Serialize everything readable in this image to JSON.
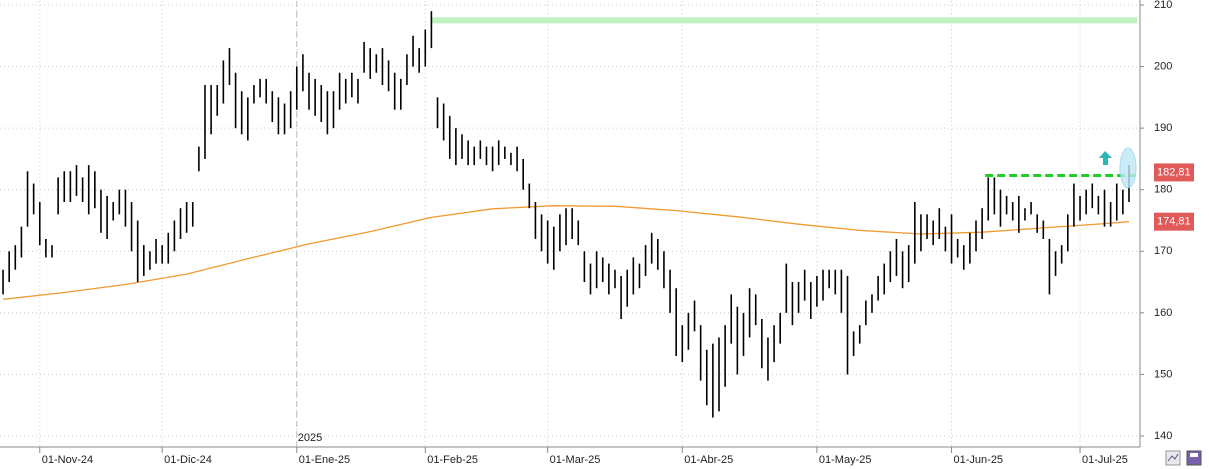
{
  "chart_data": {
    "type": "ohlc",
    "color": "#000000",
    "xlim": [
      -0.5,
      185.8
    ],
    "ylim": [
      139.35,
      210.65
    ],
    "yticks": [
      140,
      150,
      160,
      170,
      180,
      190,
      200,
      210
    ],
    "xticks": [
      {
        "value": 6,
        "label": "01-Nov-24"
      },
      {
        "value": 26,
        "label": "01-Dic-24"
      },
      {
        "value": 48,
        "label": "01-Ene-25"
      },
      {
        "value": 69,
        "label": "01-Feb-25"
      },
      {
        "value": 89,
        "label": "01-Mar-25"
      },
      {
        "value": 111,
        "label": "01-Abr-25"
      },
      {
        "value": 133,
        "label": "01-May-25"
      },
      {
        "value": 155,
        "label": "01-Jun-25"
      },
      {
        "value": 176,
        "label": "01-Jul-25"
      }
    ],
    "grid": true,
    "year_marker": {
      "x": 48,
      "label": "2025"
    },
    "high": [
      167,
      170,
      171,
      174,
      183,
      181,
      178,
      172,
      171,
      182,
      183,
      183,
      184,
      182,
      184,
      183,
      180,
      179,
      178,
      180,
      180,
      178,
      175,
      171,
      170,
      172,
      171,
      173,
      175,
      177,
      178,
      178,
      187,
      197,
      197,
      197,
      201,
      203,
      199,
      196,
      195,
      197,
      198,
      198,
      196,
      195,
      194,
      196,
      200,
      202,
      199,
      198,
      197,
      196,
      196,
      199,
      198,
      199,
      198,
      204,
      203,
      202,
      203,
      201,
      199,
      198,
      202,
      205,
      203,
      206,
      209,
      195,
      194,
      192,
      190,
      189,
      188,
      187,
      188,
      187,
      187,
      188,
      187,
      186,
      187,
      185,
      181,
      178,
      176,
      175,
      174,
      176,
      177,
      177,
      175,
      170,
      168,
      170,
      169,
      168,
      167,
      166,
      167,
      169,
      168,
      171,
      173,
      172,
      170,
      167,
      164,
      158,
      160,
      162,
      158,
      154,
      155,
      156,
      158,
      163,
      161,
      160,
      164,
      163,
      159,
      156,
      158,
      160,
      168,
      165,
      165,
      167,
      165,
      166,
      167,
      167,
      167,
      167,
      166,
      157,
      158,
      162,
      163,
      166,
      168,
      170,
      172,
      170,
      171,
      178,
      176,
      176,
      175,
      177,
      174,
      176,
      172,
      171,
      173,
      175,
      177,
      182,
      182,
      180,
      179,
      178,
      179,
      177,
      178,
      176,
      175,
      172,
      170,
      171,
      176,
      181,
      179,
      180,
      181,
      179,
      180,
      178,
      181,
      180,
      184
    ],
    "low": [
      163,
      165,
      167,
      169,
      174,
      176,
      171,
      169,
      169,
      176,
      178,
      178,
      179,
      178,
      176,
      177,
      173,
      172,
      175,
      176,
      174,
      170,
      165,
      166,
      167,
      168,
      168,
      168,
      170,
      172,
      173,
      174,
      183,
      185,
      189,
      192,
      194,
      197,
      190,
      189,
      188,
      194,
      195,
      194,
      191,
      189,
      189,
      190,
      193,
      196,
      193,
      192,
      191,
      189,
      190,
      193,
      194,
      195,
      194,
      199,
      198,
      199,
      197,
      196,
      193,
      193,
      197,
      200,
      199,
      200,
      203,
      190,
      188,
      185,
      184,
      185,
      184,
      184,
      185,
      184,
      183,
      184,
      185,
      184,
      183,
      180,
      177,
      172,
      170,
      168,
      167,
      170,
      171,
      172,
      171,
      165,
      163,
      164,
      165,
      163,
      164,
      159,
      161,
      163,
      164,
      166,
      168,
      167,
      164,
      160,
      153,
      152,
      154,
      157,
      149,
      145,
      143,
      144,
      148,
      155,
      150,
      153,
      156,
      158,
      151,
      149,
      152,
      155,
      160,
      158,
      160,
      162,
      159,
      161,
      162,
      164,
      163,
      160,
      150,
      153,
      155,
      158,
      160,
      162,
      163,
      165,
      166,
      164,
      165,
      168,
      170,
      172,
      171,
      172,
      170,
      168,
      169,
      167,
      168,
      170,
      172,
      175,
      176,
      174,
      176,
      175,
      173,
      175,
      176,
      173,
      172,
      163,
      166,
      168,
      170,
      174,
      175,
      176,
      177,
      176,
      174,
      174,
      175,
      176,
      178
    ],
    "ma": {
      "color": "#f09a30",
      "x": [
        0,
        10,
        20,
        30,
        40,
        50,
        60,
        70,
        80,
        90,
        100,
        110,
        120,
        130,
        140,
        150,
        160,
        170,
        180,
        184
      ],
      "values": [
        162.2,
        163.3,
        164.6,
        166.3,
        168.8,
        171.2,
        173.2,
        175.5,
        176.9,
        177.4,
        177.3,
        176.6,
        175.6,
        174.4,
        173.4,
        172.8,
        173.1,
        173.8,
        174.5,
        174.81
      ]
    },
    "levels": [
      {
        "value": 207.5,
        "from": 70,
        "to": 185.3,
        "color": "#bff0bf",
        "style": "solid"
      },
      {
        "value": 182.3,
        "from": 160.5,
        "to": 185,
        "color": "#22cc22",
        "style": "dashed"
      }
    ],
    "price_labels": [
      {
        "value": 182.81,
        "label": "182,81",
        "color": "#e05a5a"
      },
      {
        "value": 174.81,
        "label": "174,81",
        "color": "#e05a5a"
      }
    ]
  }
}
